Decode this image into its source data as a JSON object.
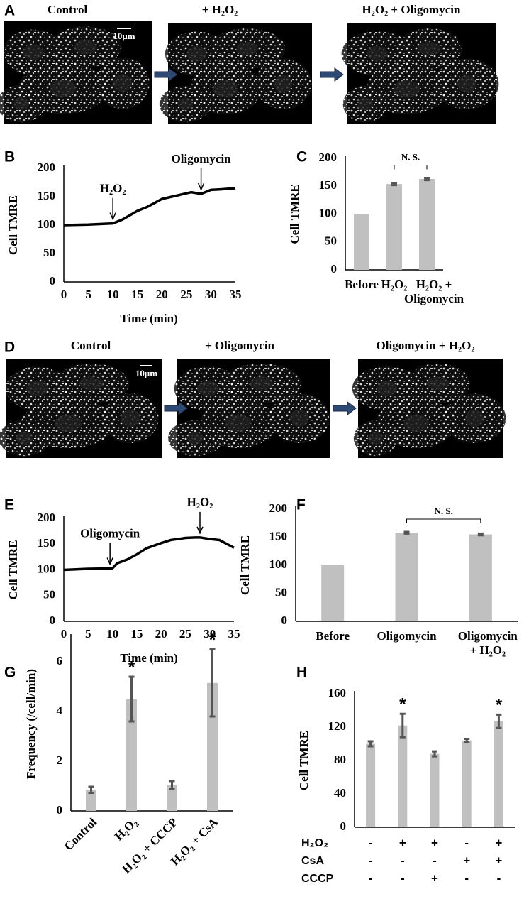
{
  "figure": {
    "panel_labels": [
      "A",
      "B",
      "C",
      "D",
      "E",
      "F",
      "G",
      "H"
    ],
    "image_rows": [
      {
        "captions": [
          "Control",
          "+ H₂O₂",
          "H₂O₂ + Oligomycin"
        ],
        "scale_bar": "10μm"
      },
      {
        "captions": [
          "Control",
          "+ Oligomycin",
          "Oligomycin + H₂O₂"
        ],
        "scale_bar": "10μm"
      }
    ]
  },
  "chart_data": [
    {
      "type": "line",
      "x": [
        0,
        5,
        10,
        12,
        15,
        17,
        20,
        22,
        25,
        26,
        28,
        30,
        32,
        35
      ],
      "values": [
        100,
        101,
        103,
        110,
        125,
        132,
        146,
        150,
        156,
        158,
        155,
        162,
        163,
        165
      ],
      "xlim": [
        0,
        35
      ],
      "xticks": [
        0,
        5,
        10,
        15,
        20,
        25,
        30,
        35
      ],
      "ylim": [
        0,
        200
      ],
      "yticks": [
        0,
        50,
        100,
        150,
        200
      ],
      "x_label": "Time (min)",
      "y_label": "Cell TMRE",
      "color": "#000000",
      "annotations": [
        {
          "text": "H₂O₂",
          "x": 10
        },
        {
          "text": "Oligomycin",
          "x": 28
        }
      ]
    },
    {
      "type": "bar",
      "categories": [
        [
          "Before"
        ],
        [
          "H₂O₂"
        ],
        [
          "H₂O₂ +",
          "Oligomycin"
        ]
      ],
      "values": [
        100,
        154,
        163
      ],
      "errors": [
        null,
        2,
        2
      ],
      "ylim": [
        0,
        200
      ],
      "yticks": [
        0,
        50,
        100,
        150,
        200
      ],
      "y_label": "Cell TMRE",
      "color": "#c0c0c0",
      "error_color": "#555555",
      "significance": "N. S."
    },
    {
      "type": "line",
      "x": [
        0,
        5,
        10,
        11,
        13,
        15,
        17,
        20,
        22,
        25,
        27,
        28,
        30,
        32,
        35
      ],
      "values": [
        100,
        102,
        103,
        113,
        120,
        130,
        142,
        152,
        158,
        162,
        163,
        163,
        160,
        158,
        143
      ],
      "xlim": [
        0,
        35
      ],
      "xticks": [
        0,
        5,
        10,
        15,
        20,
        25,
        30,
        35
      ],
      "ylim": [
        0,
        200
      ],
      "yticks": [
        0,
        50,
        100,
        150,
        200
      ],
      "x_label": "Time (min)",
      "y_label": "Cell TMRE",
      "color": "#000000",
      "annotations": [
        {
          "text": "Oligomycin",
          "x": 9.5
        },
        {
          "text": "H₂O₂",
          "x": 28
        }
      ]
    },
    {
      "type": "bar",
      "categories": [
        [
          "Before"
        ],
        [
          "Oligomycin"
        ],
        [
          "Oligomycin",
          "+ H₂O₂"
        ]
      ],
      "values": [
        100,
        158,
        155
      ],
      "errors": [
        null,
        1.5,
        1.5
      ],
      "ylim": [
        0,
        200
      ],
      "yticks": [
        0,
        50,
        100,
        150,
        200
      ],
      "y_label": "Cell TMRE",
      "color": "#c0c0c0",
      "error_color": "#555555",
      "significance": "N. S."
    },
    {
      "type": "bar",
      "categories": [
        "Control",
        "H₂O₂",
        "H₂O₂ + CCCP",
        "H₂O₂ + CsA"
      ],
      "rotated_labels": true,
      "values": [
        0.85,
        4.5,
        1.05,
        5.15
      ],
      "errors": [
        0.12,
        0.9,
        0.15,
        1.35
      ],
      "markers": [
        null,
        "*",
        null,
        "*"
      ],
      "ylim": [
        0,
        7
      ],
      "yticks": [
        0,
        2,
        4,
        6
      ],
      "y_label": "Frequency (/cell/min)",
      "color": "#c0c0c0",
      "error_color": "#555555"
    },
    {
      "type": "bar",
      "values": [
        100,
        122,
        88,
        104,
        127
      ],
      "errors": [
        3,
        14,
        3,
        2,
        8
      ],
      "markers": [
        null,
        "*",
        null,
        null,
        "*"
      ],
      "ylim": [
        0,
        160
      ],
      "yticks": [
        0,
        40,
        80,
        120,
        160
      ],
      "y_label": "Cell TMRE",
      "color": "#c0c0c0",
      "error_color": "#555555",
      "conditions": [
        {
          "name": "H₂O₂",
          "marks": [
            "-",
            "+",
            "+",
            "-",
            "+"
          ]
        },
        {
          "name": "CsA",
          "marks": [
            "-",
            "-",
            "-",
            "+",
            "+"
          ]
        },
        {
          "name": "CCCP",
          "marks": [
            "-",
            "-",
            "+",
            "-",
            "-"
          ]
        }
      ]
    }
  ]
}
